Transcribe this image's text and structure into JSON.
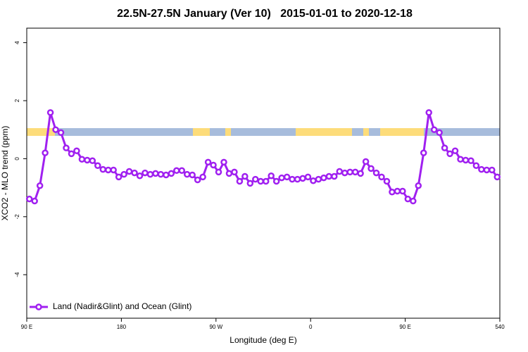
{
  "chart_data": {
    "type": "line",
    "title": "22.5N-27.5N January (Ver 10)   2015-01-01 to 2020-12-18",
    "xlabel": "Longitude (deg E)",
    "ylabel": "XCO2 - MLO trend (ppm)",
    "x": [
      92.5,
      97.5,
      102.5,
      107.5,
      112.5,
      117.5,
      122.5,
      127.5,
      132.5,
      137.5,
      142.5,
      147.5,
      152.5,
      157.5,
      162.5,
      167.5,
      172.5,
      177.5,
      182.5,
      187.5,
      192.5,
      197.5,
      202.5,
      207.5,
      212.5,
      217.5,
      222.5,
      227.5,
      232.5,
      237.5,
      242.5,
      247.5,
      252.5,
      257.5,
      262.5,
      267.5,
      272.5,
      277.5,
      282.5,
      287.5,
      292.5,
      297.5,
      302.5,
      307.5,
      312.5,
      317.5,
      322.5,
      327.5,
      332.5,
      337.5,
      342.5,
      347.5,
      352.5,
      357.5,
      362.5,
      367.5,
      372.5,
      377.5,
      382.5,
      387.5,
      392.5,
      397.5,
      402.5,
      407.5,
      412.5,
      417.5,
      422.5,
      427.5,
      432.5,
      437.5,
      442.5,
      447.5,
      452.5,
      457.5,
      462.5,
      467.5,
      472.5,
      477.5,
      482.5,
      487.5,
      492.5,
      497.5,
      502.5,
      507.5,
      512.5,
      517.5,
      522.5,
      527.5,
      532.5,
      537.5
    ],
    "series": [
      {
        "name": "Land (Nadir&Glint) and Ocean (Glint)",
        "color": "#a020f0",
        "values": [
          -1.39,
          -1.46,
          -0.93,
          0.2,
          1.59,
          1.0,
          0.9,
          0.37,
          0.17,
          0.27,
          -0.02,
          -0.05,
          -0.07,
          -0.24,
          -0.37,
          -0.39,
          -0.39,
          -0.63,
          -0.54,
          -0.44,
          -0.49,
          -0.59,
          -0.49,
          -0.54,
          -0.51,
          -0.54,
          -0.56,
          -0.51,
          -0.41,
          -0.41,
          -0.54,
          -0.56,
          -0.73,
          -0.63,
          -0.12,
          -0.22,
          -0.46,
          -0.12,
          -0.51,
          -0.46,
          -0.78,
          -0.61,
          -0.85,
          -0.71,
          -0.78,
          -0.78,
          -0.59,
          -0.78,
          -0.66,
          -0.63,
          -0.71,
          -0.71,
          -0.68,
          -0.63,
          -0.76,
          -0.71,
          -0.66,
          -0.61,
          -0.61,
          -0.44,
          -0.49,
          -0.46,
          -0.46,
          -0.51,
          -0.1,
          -0.34,
          -0.49,
          -0.63,
          -0.78,
          -1.15,
          -1.12,
          -1.12,
          -1.39,
          -1.46,
          -0.93,
          0.2,
          1.59,
          1.0,
          0.9,
          0.37,
          0.17,
          0.27,
          -0.02,
          -0.05,
          -0.07,
          -0.24,
          -0.37,
          -0.39,
          -0.39,
          -0.63
        ]
      }
    ],
    "xlim": [
      90,
      540
    ],
    "xticks": [
      {
        "value": 90,
        "label": "90 E"
      },
      180,
      {
        "value": 270,
        "label": "90 W"
      },
      {
        "value": 360,
        "label": "0"
      },
      {
        "value": 450,
        "label": "90 E"
      },
      540
    ],
    "ylim": [
      -5.5,
      4.5
    ],
    "yticks": [
      -4,
      -2,
      0,
      2,
      4
    ],
    "grid": false,
    "legend": "bottom-left"
  }
}
